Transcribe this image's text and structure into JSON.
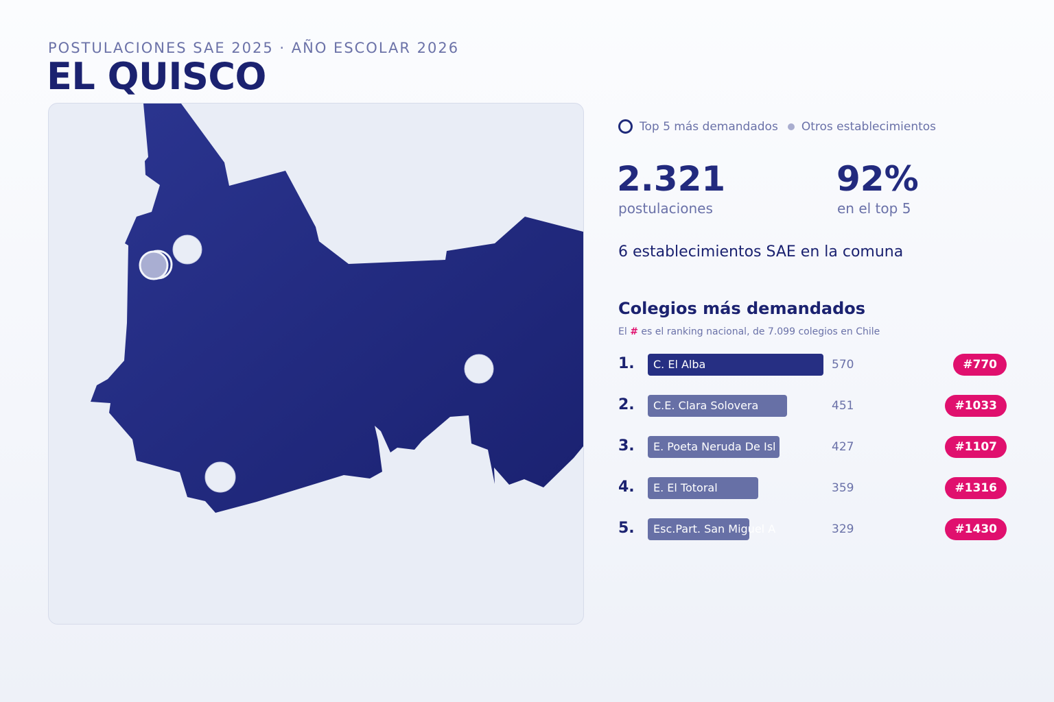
{
  "header": {
    "subtitle": "POSTULACIONES SAE 2025 · AÑO ESCOLAR 2026",
    "title": "EL QUISCO"
  },
  "legend": {
    "top5_label": "Top 5 más demandados",
    "others_label": "Otros establecimientos"
  },
  "stats": {
    "applications_value": "2.321",
    "applications_label": "postulaciones",
    "top5_share_value": "92%",
    "top5_share_label": "en el top 5"
  },
  "total_establishments": "6 establecimientos SAE en la comuna",
  "ranking": {
    "title": "Colegios más demandados",
    "note_prefix": "El",
    "note_hash": "#",
    "note_suffix": "es el ranking nacional, de 7.099 colegios en Chile",
    "items": [
      {
        "position": "1.",
        "name": "C. El Alba",
        "applications": 570,
        "applications_label": "570",
        "national_rank": "#770"
      },
      {
        "position": "2.",
        "name": "C.E. Clara Solovera",
        "applications": 451,
        "applications_label": "451",
        "national_rank": "#1033"
      },
      {
        "position": "3.",
        "name": "E. Poeta Neruda De Isl",
        "applications": 427,
        "applications_label": "427",
        "national_rank": "#1107"
      },
      {
        "position": "4.",
        "name": "E. El Totoral",
        "applications": 359,
        "applications_label": "359",
        "national_rank": "#1316"
      },
      {
        "position": "5.",
        "name": "Esc.Part. San Miguel A",
        "applications": 329,
        "applications_label": "329",
        "national_rank": "#1430"
      }
    ]
  },
  "colors": {
    "commune_fill": "#1f2a7a",
    "marker_fill": "#e9edf6",
    "accent_pink": "#e0106e",
    "bar_primary": "#262f83",
    "bar_secondary": "#6770a6"
  }
}
